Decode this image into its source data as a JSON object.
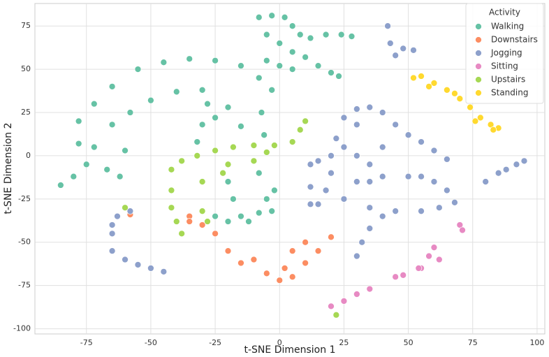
{
  "chart_data": {
    "type": "scatter",
    "x_label": "t-SNE Dimension 1",
    "y_label": "t-SNE Dimension 2",
    "xlim": [
      -95,
      103
    ],
    "ylim": [
      -103,
      88
    ],
    "xticks": [
      -75,
      -50,
      -25,
      0,
      25,
      50,
      75,
      100
    ],
    "yticks": [
      -100,
      -75,
      -50,
      -25,
      0,
      25,
      50,
      75
    ],
    "grid": true,
    "legend_title": "Activity",
    "legend_position": "upper-right",
    "series": [
      {
        "name": "Walking",
        "color": "#66c2a5",
        "x": [
          -8,
          -3,
          2,
          5,
          8,
          12,
          18,
          24,
          28,
          -5,
          0,
          5,
          10,
          15,
          20,
          23,
          -5,
          0,
          5,
          -85,
          -80,
          -75,
          -78,
          -72,
          -78,
          -72,
          -65,
          -55,
          -45,
          -35,
          -25,
          -15,
          -8,
          -3,
          -7,
          -6,
          -65,
          -58,
          -50,
          -40,
          -30,
          -28,
          -30,
          -32,
          -25,
          -20,
          -15,
          -67,
          -62,
          -60,
          -20,
          -18,
          -15,
          -12,
          -8,
          -5,
          -2,
          -8,
          -25,
          -20,
          -3
        ],
        "values": [
          80,
          81,
          80,
          75,
          70,
          68,
          70,
          70,
          69,
          70,
          65,
          60,
          57,
          52,
          48,
          46,
          55,
          52,
          50,
          -17,
          -12,
          -5,
          7,
          5,
          20,
          30,
          40,
          50,
          54,
          56,
          55,
          52,
          45,
          38,
          25,
          12,
          18,
          25,
          32,
          37,
          38,
          30,
          18,
          8,
          22,
          28,
          17,
          -8,
          -12,
          3,
          -15,
          -25,
          -35,
          -38,
          -33,
          -25,
          -20,
          -10,
          -35,
          -38,
          -32
        ]
      },
      {
        "name": "Downstairs",
        "color": "#fc8d62",
        "x": [
          -35,
          -30,
          -25,
          -20,
          -15,
          -10,
          -5,
          0,
          5,
          10,
          15,
          20,
          5,
          10,
          2,
          -58,
          -35
        ],
        "values": [
          -35,
          -40,
          -45,
          -55,
          -62,
          -60,
          -68,
          -72,
          -70,
          -62,
          -55,
          -47,
          -55,
          -50,
          -65,
          -34,
          -38
        ]
      },
      {
        "name": "Jogging",
        "color": "#8da0cb",
        "x": [
          -65,
          -63,
          -58,
          -65,
          -60,
          -55,
          -50,
          -45,
          -65,
          12,
          12,
          12,
          15,
          20,
          22,
          25,
          30,
          35,
          40,
          45,
          50,
          55,
          60,
          65,
          30,
          25,
          20,
          18,
          15,
          30,
          40,
          35,
          30,
          25,
          35,
          35,
          40,
          50,
          55,
          60,
          65,
          68,
          62,
          55,
          45,
          40,
          35,
          32,
          30,
          42,
          43,
          45,
          48,
          52,
          80,
          85,
          88,
          92,
          95
        ],
        "values": [
          -45,
          -35,
          -32,
          -55,
          -60,
          -63,
          -65,
          -67,
          -40,
          -28,
          -18,
          -5,
          -3,
          0,
          10,
          22,
          27,
          28,
          25,
          18,
          12,
          8,
          3,
          -2,
          18,
          5,
          -10,
          -20,
          -28,
          0,
          5,
          -5,
          -15,
          -25,
          -30,
          -15,
          -12,
          -12,
          -12,
          -15,
          -20,
          -27,
          -30,
          -32,
          -32,
          -35,
          -42,
          -50,
          -58,
          75,
          65,
          58,
          62,
          61,
          -15,
          -10,
          -8,
          -5,
          -3
        ]
      },
      {
        "name": "Sitting",
        "color": "#e78ac3",
        "x": [
          20,
          25,
          30,
          35,
          45,
          48,
          55,
          58,
          60,
          62,
          70,
          71,
          54
        ],
        "values": [
          -87,
          -84,
          -80,
          -77,
          -70,
          -69,
          -65,
          -58,
          -53,
          -60,
          -40,
          -43,
          -65
        ]
      },
      {
        "name": "Upstairs",
        "color": "#a6d854",
        "x": [
          -42,
          -38,
          -32,
          -25,
          -18,
          -10,
          -2,
          5,
          8,
          10,
          -42,
          -42,
          -40,
          -38,
          -30,
          -20,
          -10,
          -5,
          -22,
          -60,
          -30,
          -28,
          22
        ],
        "values": [
          -8,
          -3,
          0,
          3,
          5,
          6,
          6,
          8,
          15,
          20,
          -20,
          -30,
          -38,
          -45,
          -15,
          -5,
          -3,
          2,
          -10,
          -30,
          -32,
          -38,
          -92
        ]
      },
      {
        "name": "Standing",
        "color": "#ffd92f",
        "x": [
          52,
          55,
          60,
          65,
          70,
          74,
          78,
          82,
          85,
          83,
          58,
          68,
          76
        ],
        "values": [
          45,
          46,
          42,
          38,
          33,
          28,
          22,
          18,
          16,
          15,
          40,
          36,
          20
        ]
      }
    ]
  }
}
